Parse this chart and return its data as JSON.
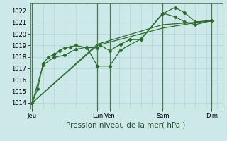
{
  "background_color": "#cce8e8",
  "grid_color": "#aad4d4",
  "line_color": "#2d6e2d",
  "marker_color": "#2d6e2d",
  "xlabel": "Pression niveau de la mer( hPa )",
  "ylim": [
    1013.5,
    1022.7
  ],
  "yticks": [
    1014,
    1015,
    1016,
    1017,
    1018,
    1019,
    1020,
    1021,
    1022
  ],
  "xlabel_fontsize": 7.5,
  "tick_fontsize": 6,
  "day_labels": [
    "Jeu",
    "Lun",
    "Ven",
    "Sam",
    "Dim"
  ],
  "day_positions": [
    0,
    96,
    114,
    192,
    264
  ],
  "xlim": [
    -4,
    280
  ],
  "minor_grid_step": 16,
  "series1_x": [
    0,
    8,
    16,
    24,
    32,
    40,
    48,
    56,
    64,
    80,
    96,
    100,
    114,
    130,
    144,
    160,
    192,
    210,
    224,
    240,
    264
  ],
  "series1_y": [
    1014.0,
    1015.2,
    1017.4,
    1018.0,
    1018.2,
    1018.5,
    1018.8,
    1018.85,
    1019.0,
    1018.8,
    1018.8,
    1019.0,
    1018.55,
    1019.1,
    1019.5,
    1019.5,
    1021.75,
    1022.3,
    1021.85,
    1021.05,
    1021.15
  ],
  "series2_x": [
    0,
    16,
    32,
    48,
    64,
    80,
    96,
    114,
    130,
    160,
    192,
    210,
    224,
    240,
    264
  ],
  "series2_y": [
    1014.0,
    1017.3,
    1017.95,
    1018.15,
    1018.65,
    1018.85,
    1017.2,
    1017.2,
    1018.6,
    1019.55,
    1021.8,
    1021.5,
    1021.05,
    1020.8,
    1021.15
  ],
  "series3_x": [
    0,
    96,
    192,
    264
  ],
  "series3_y": [
    1014.0,
    1019.0,
    1020.5,
    1021.2
  ],
  "series4_x": [
    0,
    96,
    192,
    264
  ],
  "series4_y": [
    1014.0,
    1019.1,
    1020.8,
    1021.1
  ]
}
